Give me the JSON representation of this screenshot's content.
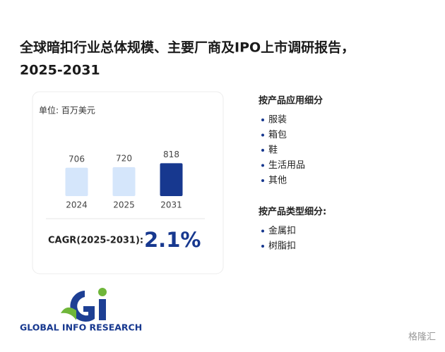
{
  "header": {
    "title": [
      "全球暗扣行业总体规模、主要厂商及IPO上市调研报告，",
      "2025-2031"
    ]
  },
  "chart_data": {
    "type": "bar",
    "unit": "单位: 百万美元",
    "categories": [
      "2024",
      "2025",
      "2031"
    ],
    "values": [
      706,
      720,
      818
    ],
    "colors": [
      "#d5e6fb",
      "#d5e6fb",
      "#17388f"
    ],
    "ylim": [
      0,
      1000
    ]
  },
  "cagr": {
    "label": "CAGR(2025-2031):",
    "value": "2.1%"
  },
  "sections": [
    {
      "heading": "按产品应用细分",
      "items": [
        "服装",
        "箱包",
        "鞋",
        "生活用品",
        "其他"
      ]
    },
    {
      "heading": "按产品类型细分:",
      "items": [
        "金属扣",
        "树脂扣"
      ]
    }
  ],
  "logo": "GLOBAL INFO RESEARCH",
  "watermark": "格隆汇"
}
